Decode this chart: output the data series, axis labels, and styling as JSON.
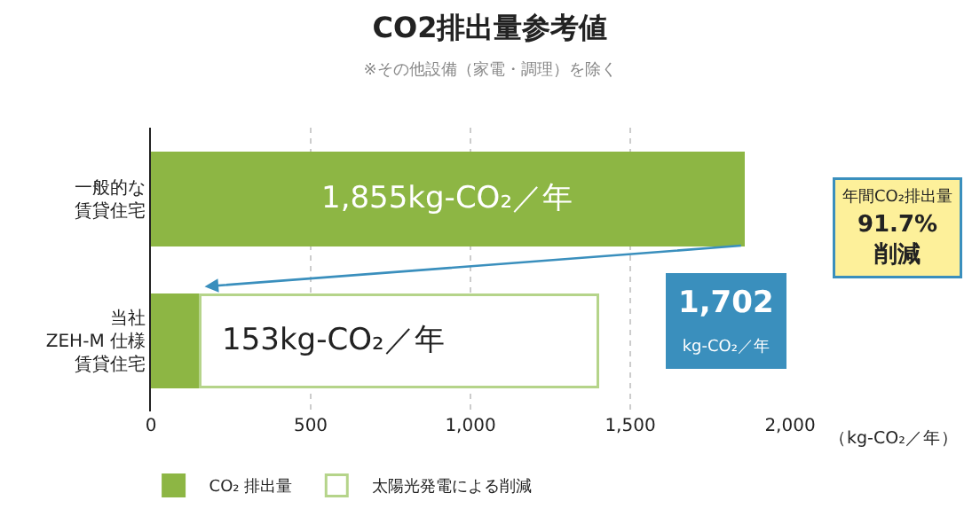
{
  "chart_data": {
    "type": "bar",
    "orientation": "horizontal",
    "stacked": true,
    "title": "CO2排出量参考値",
    "subtitle": "※その他設備（家電・調理）を除く",
    "xlabel": "（kg-CO₂／年）",
    "categories": [
      "一般的な賃貸住宅",
      "当社ZEH-M 仕様賃貸住宅"
    ],
    "series": [
      {
        "name": "CO₂ 排出量",
        "color": "#8db644",
        "values": [
          1855,
          153
        ],
        "value_labels": [
          "1,855kg-CO₂／年",
          "153kg-CO₂／年"
        ]
      },
      {
        "name": "太陽光発電による削減",
        "color": "#b5d48a",
        "values": [
          null,
          1245
        ]
      }
    ],
    "xlim": [
      0,
      2000
    ],
    "xticks": [
      0,
      500,
      {
        "value": 1000,
        "label": "1,000"
      },
      {
        "value": 1500,
        "label": "1,500"
      },
      {
        "value": 2000,
        "label": "2,000"
      }
    ],
    "grid": "x",
    "legend": "bottom left",
    "annotations": [
      "1,702\nkg-CO₂／年",
      "年間CO₂排出量\n91.7%\n削減"
    ]
  }
}
